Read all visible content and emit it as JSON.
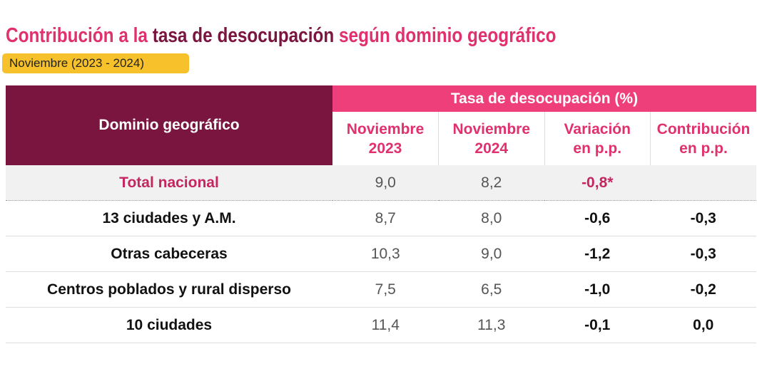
{
  "header": {
    "title": {
      "parts": [
        "Contribución a la",
        "tasa de desocupación",
        "según dominio geográfico"
      ]
    },
    "subtitle": "Noviembre (2023 - 2024)"
  },
  "table": {
    "row_header": "Dominio geográfico",
    "group_header": "Tasa de desocupación (%)",
    "columns": [
      [
        "Noviembre",
        "2023"
      ],
      [
        "Noviembre",
        "2024"
      ],
      [
        "Variación",
        "en p.p."
      ],
      [
        "Contribución",
        "en p.p."
      ]
    ],
    "rows": [
      [
        "Total nacional",
        "9,0",
        "8,2",
        "-0,8*"
      ],
      [
        "13 ciudades y A.M.",
        "8,7",
        "8,0",
        "-0,6",
        "-0,3"
      ],
      [
        "Otras cabeceras",
        "10,3",
        "9,0",
        "-1,2",
        "-0,3"
      ],
      [
        "Centros poblados y rural disperso",
        "7,5",
        "6,5",
        "-1,0",
        "-0,2"
      ],
      [
        "10 ciudades",
        "11,4",
        "11,3",
        "-0,1",
        "0,0"
      ]
    ]
  }
}
